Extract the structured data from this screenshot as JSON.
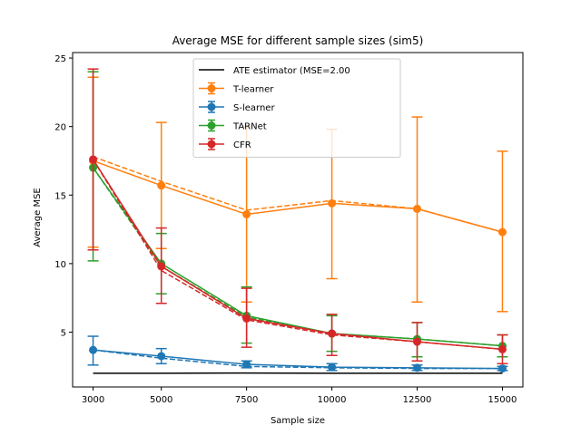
{
  "chart_data": {
    "type": "line",
    "title": "Average MSE for different sample sizes (sim5)",
    "xlabel": "Sample size",
    "ylabel": "Average MSE",
    "x": [
      3000,
      5000,
      7500,
      10000,
      12500,
      15000
    ],
    "x_ticks": [
      3000,
      5000,
      7500,
      10000,
      12500,
      15000
    ],
    "y_ticks": [
      5,
      10,
      15,
      20,
      25
    ],
    "xlim": [
      2400,
      15600
    ],
    "ylim": [
      1.0,
      25.4
    ],
    "legend_position": "top-center",
    "reference": {
      "name": "ATE estimator (MSE=2.00",
      "color": "#000000",
      "values": [
        2.0,
        2.0,
        2.02,
        2.0,
        2.0,
        2.0
      ]
    },
    "series": [
      {
        "name": "T-learner",
        "color": "#ff7f0e",
        "values": [
          17.5,
          15.7,
          13.6,
          14.4,
          14.0,
          12.3
        ],
        "err_low": [
          11.2,
          11.1,
          7.2,
          8.9,
          7.2,
          6.5
        ],
        "err_high": [
          23.6,
          20.3,
          20.0,
          19.8,
          20.7,
          18.2
        ],
        "dashed": [
          17.8,
          16.0,
          13.9,
          14.6,
          14.0,
          12.3
        ]
      },
      {
        "name": "S-learner",
        "color": "#1f77b4",
        "values": [
          3.7,
          3.25,
          2.65,
          2.45,
          2.4,
          2.35
        ],
        "err_low": [
          2.6,
          2.7,
          2.4,
          2.2,
          2.2,
          2.2
        ],
        "err_high": [
          4.7,
          3.8,
          2.9,
          2.7,
          2.6,
          2.5
        ],
        "dashed": [
          3.7,
          3.1,
          2.5,
          2.4,
          2.35,
          2.35
        ]
      },
      {
        "name": "TARNet",
        "color": "#2ca02c",
        "values": [
          17.0,
          10.0,
          6.2,
          4.9,
          4.5,
          4.0
        ],
        "err_low": [
          10.2,
          7.8,
          4.2,
          3.6,
          3.2,
          3.2
        ],
        "err_high": [
          24.0,
          12.2,
          8.3,
          6.2,
          5.7,
          4.8
        ],
        "dashed": [
          17.0,
          9.8,
          6.1,
          4.9,
          4.5,
          4.0
        ]
      },
      {
        "name": "CFR",
        "color": "#d62728",
        "values": [
          17.6,
          9.8,
          6.0,
          4.9,
          4.3,
          3.75
        ],
        "err_low": [
          11.0,
          7.1,
          3.9,
          3.3,
          2.9,
          2.7
        ],
        "err_high": [
          24.2,
          12.6,
          8.2,
          6.3,
          5.7,
          4.8
        ],
        "dashed": [
          17.6,
          9.5,
          5.9,
          4.8,
          4.3,
          3.75
        ]
      }
    ]
  }
}
